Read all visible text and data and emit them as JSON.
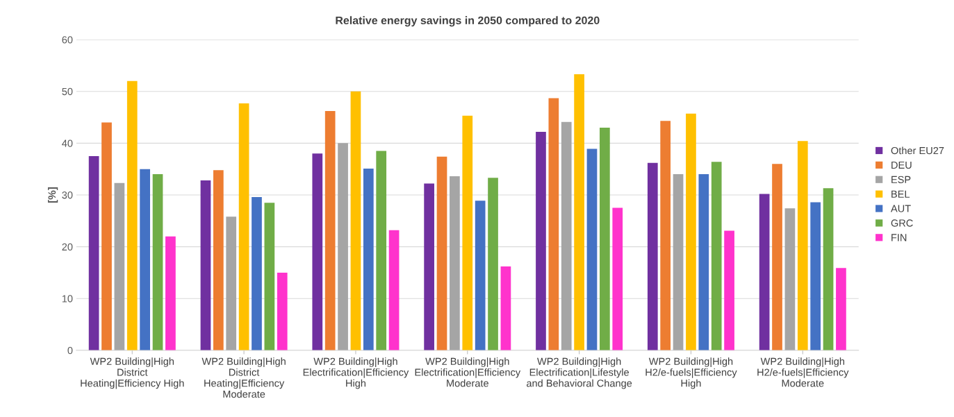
{
  "chart_data": {
    "type": "bar",
    "title": "Relative energy savings in 2050 compared to 2020",
    "ylabel": "[%]",
    "categories": [
      "WP2 Building|High District Heating|Efficiency High",
      "WP2 Building|High District Heating|Efficiency Moderate",
      "WP2 Building|High Electrification|Efficiency High",
      "WP2 Building|High Electrification|Efficiency Moderate",
      "WP2 Building|High Electrification|Lifestyle and Behavioral Change",
      "WP2 Building|High H2/e-fuels|Efficiency High",
      "WP2 Building|High H2/e-fuels|Efficiency Moderate"
    ],
    "series": [
      {
        "name": "Other EU27",
        "color": "#7030a0",
        "values": [
          37.5,
          32.8,
          38.0,
          32.2,
          42.2,
          36.2,
          30.2
        ]
      },
      {
        "name": "DEU",
        "color": "#ed7d31",
        "values": [
          44.0,
          34.8,
          46.2,
          37.4,
          48.7,
          44.3,
          36.0
        ]
      },
      {
        "name": "ESP",
        "color": "#a5a5a5",
        "values": [
          32.3,
          25.8,
          40.0,
          33.6,
          44.1,
          34.0,
          27.4
        ]
      },
      {
        "name": "BEL",
        "color": "#ffc000",
        "values": [
          52.0,
          47.7,
          50.0,
          45.3,
          53.3,
          45.7,
          40.4
        ]
      },
      {
        "name": "AUT",
        "color": "#4472c4",
        "values": [
          35.0,
          29.6,
          35.1,
          28.9,
          38.9,
          34.0,
          28.6
        ]
      },
      {
        "name": "GRC",
        "color": "#70ad47",
        "values": [
          34.0,
          28.5,
          38.5,
          33.3,
          43.0,
          36.4,
          31.3
        ]
      },
      {
        "name": "FIN",
        "color": "#ff33cc",
        "values": [
          22.0,
          15.0,
          23.2,
          16.2,
          27.5,
          23.1,
          15.9
        ]
      }
    ],
    "ylim": [
      0,
      60
    ],
    "yticks": [
      0,
      10,
      20,
      30,
      40,
      50,
      60
    ],
    "grid": "y",
    "legend": "right"
  }
}
